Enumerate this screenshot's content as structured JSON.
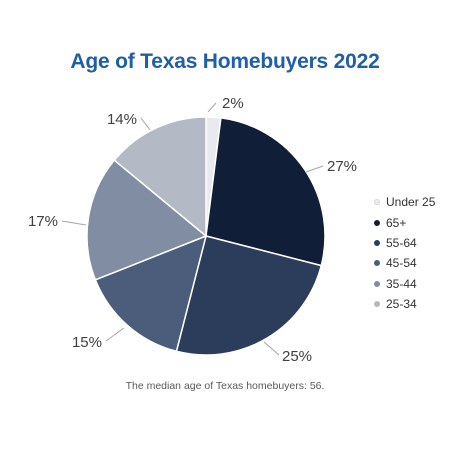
{
  "chart_data": {
    "type": "pie",
    "title": "Age of Texas Homebuyers 2022",
    "footnote": "The median age of Texas homebuyers: 56.",
    "slices": [
      {
        "label": "Under 25",
        "value": 2,
        "display": "2%",
        "color": "#e8eaef"
      },
      {
        "label": "65+",
        "value": 27,
        "display": "27%",
        "color": "#111e37"
      },
      {
        "label": "55-64",
        "value": 25,
        "display": "25%",
        "color": "#2c3d5c"
      },
      {
        "label": "45-54",
        "value": 15,
        "display": "15%",
        "color": "#4b5d7b"
      },
      {
        "label": "35-44",
        "value": 17,
        "display": "17%",
        "color": "#818da2"
      },
      {
        "label": "25-34",
        "value": 14,
        "display": "14%",
        "color": "#b3bac6"
      }
    ],
    "legend_position": "right",
    "start_angle": "top, clockwise"
  }
}
